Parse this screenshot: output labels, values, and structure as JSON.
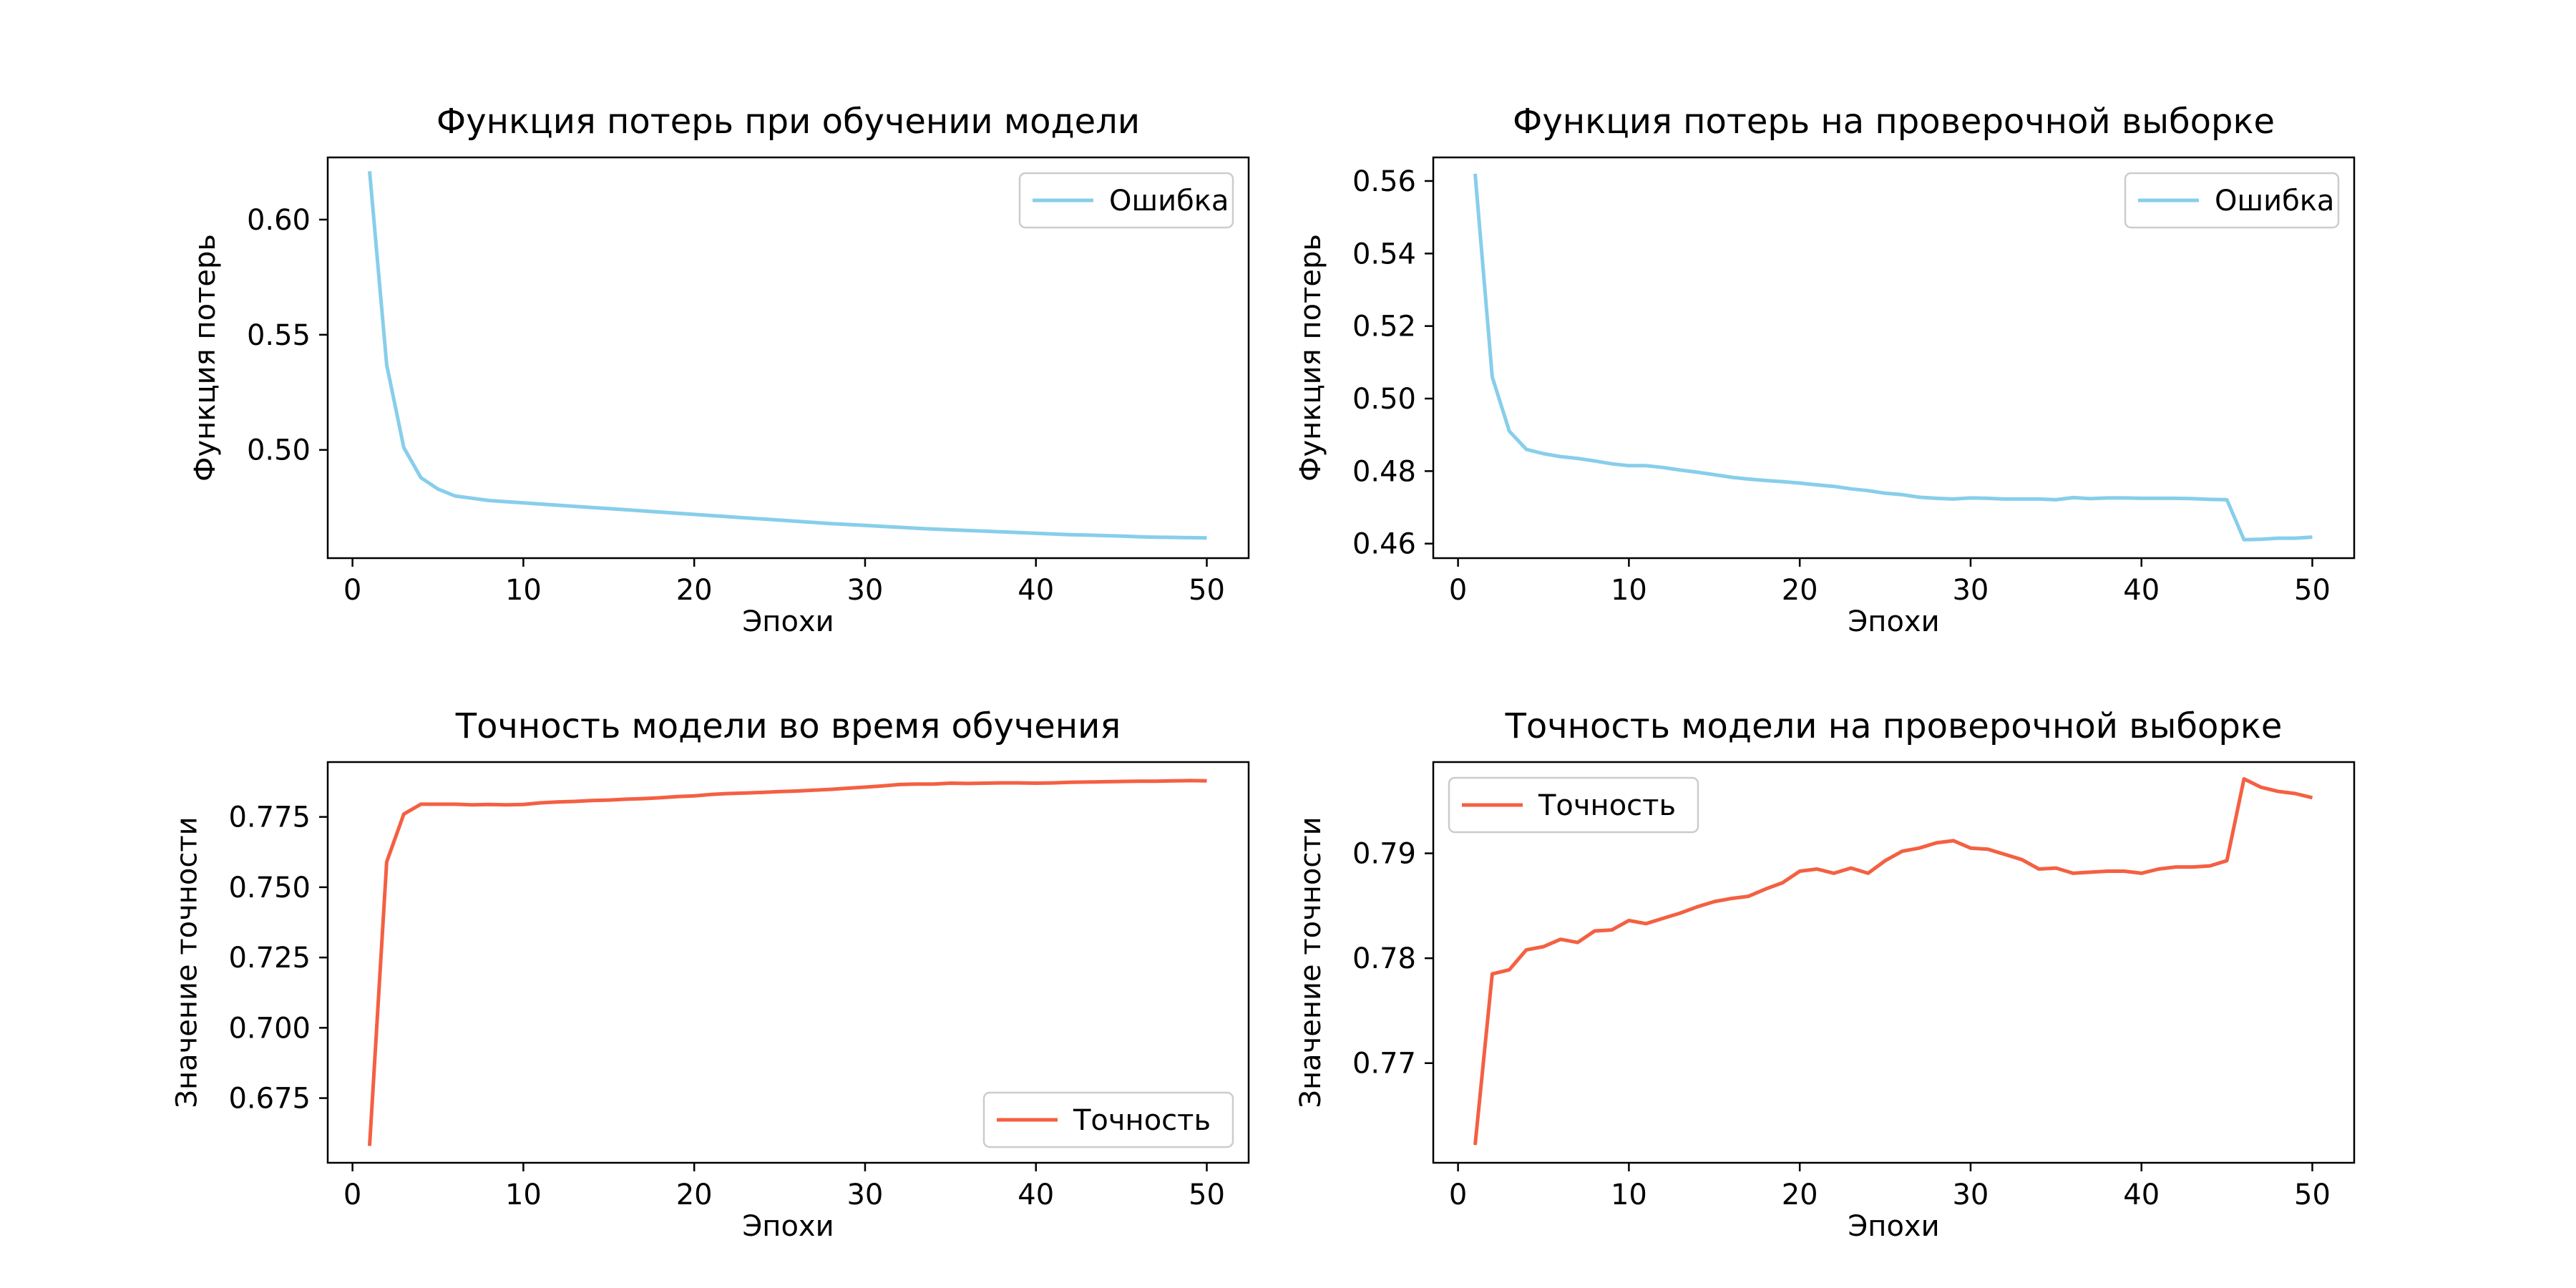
{
  "chart_data": [
    {
      "type": "line",
      "title": "Функция потерь при обучении модели",
      "xlabel": "Эпохи",
      "ylabel": "Функция потерь",
      "xlim": [
        -1.45,
        52.45
      ],
      "ylim": [
        0.453,
        0.627
      ],
      "xticks": [
        0,
        10,
        20,
        30,
        40,
        50
      ],
      "xtick_labels": [
        "0",
        "10",
        "20",
        "30",
        "40",
        "50"
      ],
      "yticks": [
        0.5,
        0.55,
        0.6
      ],
      "ytick_labels": [
        "0.50",
        "0.55",
        "0.60"
      ],
      "legend": "top-right",
      "grid": false,
      "series": [
        {
          "name": "Ошибка",
          "color": "#87ceeb",
          "x": [
            1,
            2,
            3,
            4,
            5,
            6,
            7,
            8,
            9,
            10,
            11,
            12,
            13,
            14,
            15,
            16,
            17,
            18,
            19,
            20,
            21,
            22,
            23,
            24,
            25,
            26,
            27,
            28,
            29,
            30,
            31,
            32,
            33,
            34,
            35,
            36,
            37,
            38,
            39,
            40,
            41,
            42,
            43,
            44,
            45,
            46,
            47,
            48,
            49,
            50
          ],
          "y": [
            0.621,
            0.537,
            0.501,
            0.488,
            0.483,
            0.48,
            0.479,
            0.478,
            0.4775,
            0.477,
            0.4765,
            0.476,
            0.4755,
            0.475,
            0.4745,
            0.474,
            0.4735,
            0.473,
            0.4725,
            0.472,
            0.4715,
            0.471,
            0.4705,
            0.47,
            0.4695,
            0.469,
            0.4685,
            0.468,
            0.4676,
            0.4672,
            0.4668,
            0.4664,
            0.466,
            0.4656,
            0.4653,
            0.465,
            0.4647,
            0.4644,
            0.4641,
            0.4638,
            0.4635,
            0.4632,
            0.463,
            0.4628,
            0.4626,
            0.4623,
            0.4621,
            0.462,
            0.4619,
            0.4618
          ]
        }
      ]
    },
    {
      "type": "line",
      "title": "Функция потерь на проверочной выборке",
      "xlabel": "Эпохи",
      "ylabel": "Функция потерь",
      "xlim": [
        -1.45,
        52.45
      ],
      "ylim": [
        0.456,
        0.5665
      ],
      "xticks": [
        0,
        10,
        20,
        30,
        40,
        50
      ],
      "xtick_labels": [
        "0",
        "10",
        "20",
        "30",
        "40",
        "50"
      ],
      "yticks": [
        0.46,
        0.48,
        0.5,
        0.52,
        0.54,
        0.56
      ],
      "ytick_labels": [
        "0.46",
        "0.48",
        "0.50",
        "0.52",
        "0.54",
        "0.56"
      ],
      "legend": "top-right",
      "grid": false,
      "series": [
        {
          "name": "Ошибка",
          "color": "#87ceeb",
          "x": [
            1,
            2,
            3,
            4,
            5,
            6,
            7,
            8,
            9,
            10,
            11,
            12,
            13,
            14,
            15,
            16,
            17,
            18,
            19,
            20,
            21,
            22,
            23,
            24,
            25,
            26,
            27,
            28,
            29,
            30,
            31,
            32,
            33,
            34,
            35,
            36,
            37,
            38,
            39,
            40,
            41,
            42,
            43,
            44,
            45,
            46,
            47,
            48,
            49,
            50
          ],
          "y": [
            0.562,
            0.506,
            0.491,
            0.486,
            0.4848,
            0.484,
            0.4835,
            0.4828,
            0.482,
            0.4815,
            0.4815,
            0.481,
            0.4803,
            0.4797,
            0.479,
            0.4783,
            0.4778,
            0.4774,
            0.4771,
            0.4767,
            0.4762,
            0.4758,
            0.4751,
            0.4746,
            0.4739,
            0.4735,
            0.4728,
            0.4725,
            0.4723,
            0.4726,
            0.4725,
            0.4723,
            0.4723,
            0.4723,
            0.4721,
            0.4727,
            0.4724,
            0.4726,
            0.4726,
            0.4725,
            0.4725,
            0.4725,
            0.4724,
            0.4722,
            0.4721,
            0.4611,
            0.4612,
            0.4615,
            0.4615,
            0.4618
          ]
        }
      ]
    },
    {
      "type": "line",
      "title": "Точность модели во время обучения",
      "xlabel": "Эпохи",
      "ylabel": "Значение точности",
      "xlim": [
        -1.45,
        52.45
      ],
      "ylim": [
        0.652,
        0.7945
      ],
      "xticks": [
        0,
        10,
        20,
        30,
        40,
        50
      ],
      "xtick_labels": [
        "0",
        "10",
        "20",
        "30",
        "40",
        "50"
      ],
      "yticks": [
        0.675,
        0.7,
        0.725,
        0.75,
        0.775
      ],
      "ytick_labels": [
        "0.675",
        "0.700",
        "0.725",
        "0.750",
        "0.775"
      ],
      "legend": "bottom-right",
      "grid": false,
      "series": [
        {
          "name": "Точность",
          "color": "#f46042",
          "x": [
            1,
            2,
            3,
            4,
            5,
            6,
            7,
            8,
            9,
            10,
            11,
            12,
            13,
            14,
            15,
            16,
            17,
            18,
            19,
            20,
            21,
            22,
            23,
            24,
            25,
            26,
            27,
            28,
            29,
            30,
            31,
            32,
            33,
            34,
            35,
            36,
            37,
            38,
            39,
            40,
            41,
            42,
            43,
            44,
            45,
            46,
            47,
            48,
            49,
            50
          ],
          "y": [
            0.658,
            0.759,
            0.776,
            0.7795,
            0.7795,
            0.7795,
            0.7793,
            0.7794,
            0.7793,
            0.7794,
            0.78,
            0.7803,
            0.7805,
            0.7808,
            0.781,
            0.7813,
            0.7815,
            0.7818,
            0.7822,
            0.7825,
            0.783,
            0.7833,
            0.7835,
            0.7837,
            0.784,
            0.7842,
            0.7845,
            0.7848,
            0.7852,
            0.7856,
            0.786,
            0.7865,
            0.7867,
            0.7867,
            0.787,
            0.7869,
            0.787,
            0.7871,
            0.7871,
            0.787,
            0.7871,
            0.7873,
            0.7874,
            0.7875,
            0.7876,
            0.7877,
            0.7877,
            0.7878,
            0.7879,
            0.7878
          ]
        }
      ]
    },
    {
      "type": "line",
      "title": "Точность модели на проверочной выборке",
      "xlabel": "Эпохи",
      "ylabel": "Значение точности",
      "xlim": [
        -1.45,
        52.45
      ],
      "ylim": [
        0.7605,
        0.7987
      ],
      "xticks": [
        0,
        10,
        20,
        30,
        40,
        50
      ],
      "xtick_labels": [
        "0",
        "10",
        "20",
        "30",
        "40",
        "50"
      ],
      "yticks": [
        0.77,
        0.78,
        0.79
      ],
      "ytick_labels": [
        "0.77",
        "0.78",
        "0.79"
      ],
      "legend": "top-left",
      "grid": false,
      "series": [
        {
          "name": "Точность",
          "color": "#f46042",
          "x": [
            1,
            2,
            3,
            4,
            5,
            6,
            7,
            8,
            9,
            10,
            11,
            12,
            13,
            14,
            15,
            16,
            17,
            18,
            19,
            20,
            21,
            22,
            23,
            24,
            25,
            26,
            27,
            28,
            29,
            30,
            31,
            32,
            33,
            34,
            35,
            36,
            37,
            38,
            39,
            40,
            41,
            42,
            43,
            44,
            45,
            46,
            47,
            48,
            49,
            50
          ],
          "y": [
            0.7622,
            0.7785,
            0.7789,
            0.7808,
            0.7811,
            0.7818,
            0.7815,
            0.7826,
            0.7827,
            0.7836,
            0.7833,
            0.7838,
            0.7843,
            0.7849,
            0.7854,
            0.7857,
            0.7859,
            0.7866,
            0.7872,
            0.7883,
            0.7885,
            0.7881,
            0.7886,
            0.7881,
            0.7893,
            0.7902,
            0.7905,
            0.791,
            0.7912,
            0.7905,
            0.7904,
            0.7899,
            0.7894,
            0.7885,
            0.7886,
            0.7881,
            0.7882,
            0.7883,
            0.7883,
            0.7881,
            0.7885,
            0.7887,
            0.7887,
            0.7888,
            0.7893,
            0.7971,
            0.7963,
            0.7959,
            0.7957,
            0.7953
          ]
        }
      ]
    }
  ]
}
